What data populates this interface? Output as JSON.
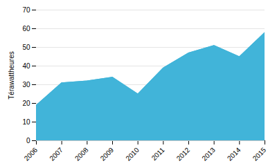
{
  "chart_data": {
    "type": "area",
    "x": [
      2006,
      2007,
      2008,
      2009,
      2010,
      2011,
      2012,
      2013,
      2014,
      2015
    ],
    "values": [
      19,
      31,
      32,
      34,
      25,
      39,
      47,
      51,
      45,
      58
    ],
    "color": "#41B4D9",
    "ylabel": "Térawattheures",
    "xlim": [
      2006,
      2015
    ],
    "xticks": [
      2006,
      2007,
      2008,
      2009,
      2010,
      2011,
      2012,
      2013,
      2014,
      2015
    ],
    "ylim": [
      0,
      70
    ],
    "yticks": [
      0,
      10,
      20,
      30,
      40,
      50,
      60,
      70
    ],
    "grid": true
  }
}
